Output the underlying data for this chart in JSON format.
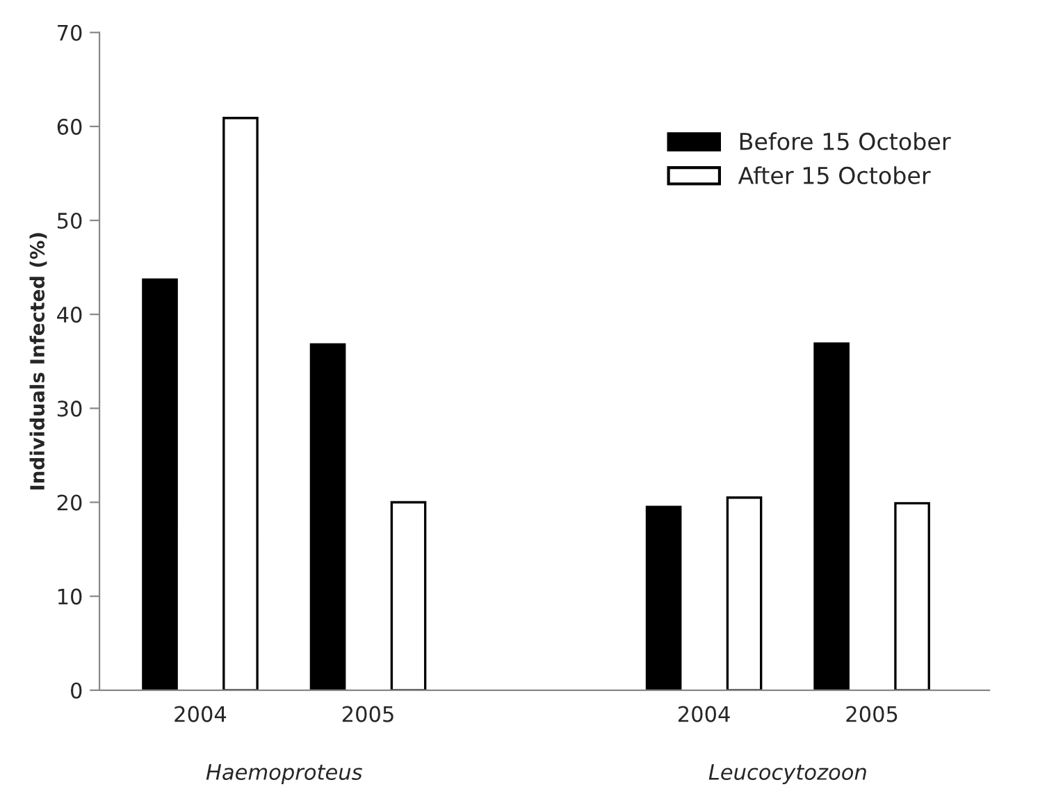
{
  "chart_data": {
    "type": "bar",
    "ylabel": "Individuals Infected (%)",
    "categories": [
      "2004",
      "2005",
      null,
      "2004",
      "2005"
    ],
    "series": [
      {
        "name": "Before 15 October",
        "color": "#000000",
        "values": [
          43.7,
          36.8,
          null,
          19.5,
          36.9
        ]
      },
      {
        "name": "After 15 October",
        "color": "#ffffff",
        "values": [
          60.9,
          20.0,
          null,
          20.5,
          19.9
        ]
      }
    ],
    "ylim": [
      0,
      70
    ],
    "yticks": [
      0,
      10,
      20,
      30,
      40,
      50,
      60,
      70
    ],
    "annotations": [
      "Haemoproteus",
      "Leucocytozoon"
    ],
    "legend": "top right",
    "grid": false
  }
}
